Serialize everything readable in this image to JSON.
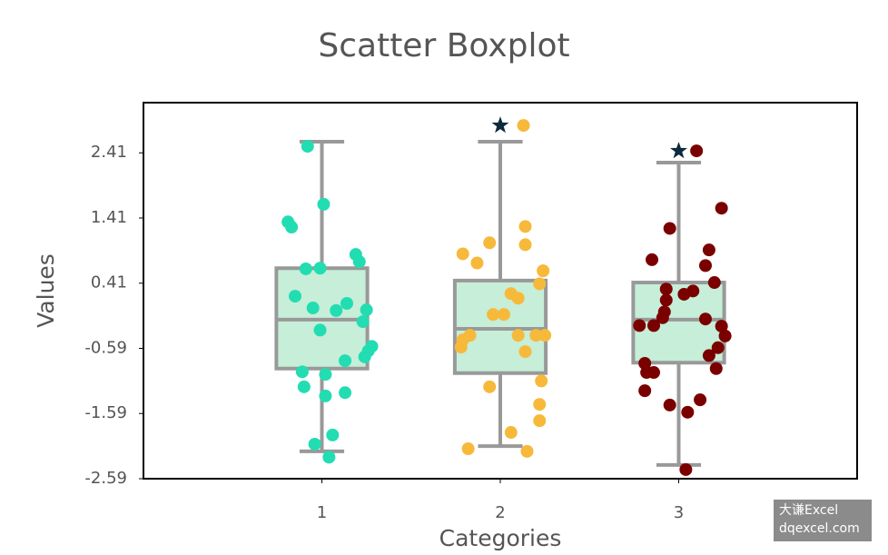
{
  "chart_data": {
    "type": "boxplot",
    "title": "Scatter Boxplot",
    "xlabel": "Categories",
    "ylabel": "Values",
    "xlim": [
      0,
      4
    ],
    "xticks": [
      1,
      2,
      3
    ],
    "ylim": [
      -2.59,
      3.18
    ],
    "yticks": [
      2.41,
      1.41,
      0.41,
      -0.59,
      -1.59,
      -2.59
    ],
    "box_fill": "#c6eed8",
    "box_edge": "#999999",
    "boxes": [
      {
        "x": 1,
        "whislo": -2.17,
        "q1": -0.9,
        "med": -0.15,
        "q3": 0.64,
        "whishi": 2.58
      },
      {
        "x": 2,
        "whislo": -2.09,
        "q1": -0.97,
        "med": -0.29,
        "q3": 0.45,
        "whishi": 2.58
      },
      {
        "x": 3,
        "whislo": -2.38,
        "q1": -0.81,
        "med": -0.15,
        "q3": 0.42,
        "whishi": 2.26
      }
    ],
    "series": [
      {
        "color": "#22ddb2",
        "x": [
          0.92,
          1.01,
          0.81,
          0.83,
          1.19,
          1.21,
          0.91,
          0.99,
          0.85,
          1.14,
          0.95,
          1.08,
          1.25,
          1.23,
          0.99,
          1.28,
          1.26,
          1.24,
          1.13,
          0.89,
          1.02,
          0.9,
          1.13,
          1.02,
          1.06,
          0.96,
          1.04
        ],
        "values": [
          2.51,
          1.62,
          1.35,
          1.27,
          0.85,
          0.74,
          0.63,
          0.64,
          0.21,
          0.1,
          0.03,
          -0.01,
          0.0,
          -0.18,
          -0.31,
          -0.56,
          -0.63,
          -0.72,
          -0.78,
          -0.95,
          -0.99,
          -1.18,
          -1.27,
          -1.32,
          -1.92,
          -2.06,
          -2.26
        ]
      },
      {
        "color": "#f7b93a",
        "x": [
          2.13,
          1.94,
          2.14,
          2.14,
          1.79,
          1.87,
          2.24,
          2.22,
          2.06,
          2.1,
          1.96,
          2.02,
          1.83,
          1.79,
          2.1,
          2.2,
          2.25,
          1.78,
          2.14,
          2.23,
          1.94,
          2.22,
          2.22,
          2.06,
          1.82,
          2.15
        ],
        "values": [
          2.83,
          1.03,
          1.28,
          1.0,
          0.86,
          0.72,
          0.6,
          0.4,
          0.25,
          0.18,
          -0.07,
          -0.07,
          -0.39,
          -0.46,
          -0.39,
          -0.39,
          -0.39,
          -0.57,
          -0.64,
          -1.09,
          -1.18,
          -1.45,
          -1.7,
          -1.88,
          -2.13,
          -2.17
        ]
      },
      {
        "color": "#7a0000",
        "x": [
          3.1,
          3.24,
          2.95,
          3.17,
          2.85,
          3.15,
          3.2,
          2.93,
          3.08,
          3.03,
          2.93,
          2.92,
          2.91,
          3.15,
          2.78,
          2.86,
          3.24,
          3.26,
          3.22,
          3.17,
          2.81,
          2.82,
          2.86,
          3.21,
          2.81,
          3.12,
          2.95,
          3.05,
          3.04
        ],
        "values": [
          2.44,
          1.56,
          1.25,
          0.92,
          0.77,
          0.68,
          0.42,
          0.32,
          0.29,
          0.24,
          0.15,
          -0.03,
          -0.12,
          -0.14,
          -0.24,
          -0.24,
          -0.25,
          -0.4,
          -0.58,
          -0.7,
          -0.82,
          -0.96,
          -0.96,
          -0.9,
          -1.24,
          -1.38,
          -1.46,
          -1.57,
          -2.45
        ]
      }
    ],
    "outliers": {
      "color": "#0d2a3e",
      "x": [
        2,
        3
      ],
      "values": [
        2.83,
        2.44
      ]
    },
    "watermark": [
      "大谦Excel",
      "dqexcel.com"
    ]
  }
}
